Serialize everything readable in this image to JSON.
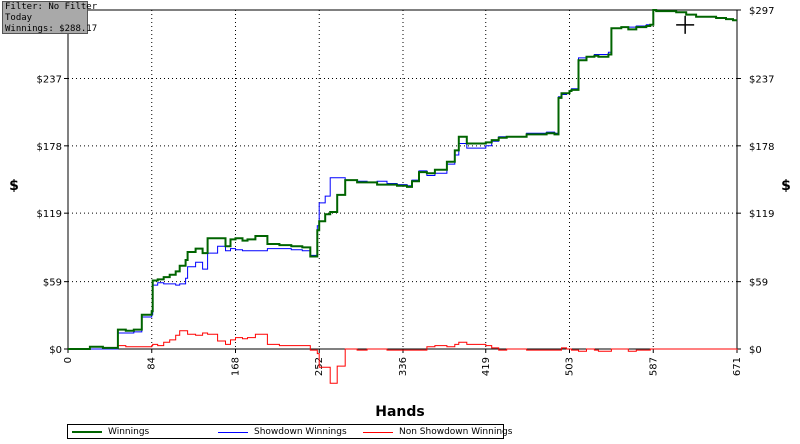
{
  "info_box": {
    "filter": "Filter: No Filter",
    "period": "Today",
    "winnings": "Winnings: $288.17"
  },
  "chart_data": {
    "type": "line",
    "title": "",
    "xlabel": "Hands",
    "ylabel_left": "$",
    "ylabel_right": "$",
    "xlim": [
      0,
      671
    ],
    "ylim": [
      -10,
      297
    ],
    "x_ticks": [
      0,
      84,
      168,
      252,
      336,
      419,
      503,
      587,
      671
    ],
    "y_ticks": [
      0,
      59,
      119,
      178,
      237,
      297
    ],
    "y_tick_labels": [
      "$0",
      "$59",
      "$119",
      "$178",
      "$237",
      "$297"
    ],
    "grid": true,
    "legend": "bottom",
    "series": [
      {
        "name": "Winnings",
        "color": "#006400",
        "x": [
          0,
          15,
          22,
          35,
          48,
          50,
          58,
          66,
          74,
          84,
          85,
          90,
          96,
          102,
          108,
          112,
          118,
          120,
          128,
          135,
          140,
          150,
          158,
          163,
          168,
          175,
          180,
          188,
          200,
          212,
          224,
          235,
          243,
          250,
          252,
          258,
          263,
          270,
          278,
          290,
          300,
          310,
          320,
          330,
          340,
          345,
          352,
          360,
          368,
          380,
          388,
          392,
          400,
          410,
          419,
          425,
          432,
          440,
          450,
          460,
          470,
          480,
          488,
          492,
          495,
          500,
          503,
          505,
          512,
          520,
          528,
          532,
          538,
          542,
          545,
          555,
          562,
          570,
          580,
          584,
          587,
          590,
          600,
          610,
          620,
          630,
          640,
          650,
          660,
          667,
          671
        ],
        "values": [
          0,
          0,
          2,
          1,
          1,
          17,
          16,
          17,
          30,
          33,
          60,
          61,
          63,
          65,
          68,
          73,
          78,
          85,
          88,
          84,
          97,
          97,
          90,
          96,
          97,
          95,
          96,
          99,
          92,
          91,
          90,
          89,
          81,
          104,
          112,
          118,
          120,
          135,
          148,
          146,
          146,
          144,
          144,
          143,
          142,
          147,
          155,
          154,
          157,
          164,
          174,
          186,
          180,
          180,
          181,
          183,
          185,
          186,
          186,
          188,
          188,
          189,
          188,
          220,
          224,
          224,
          226,
          227,
          253,
          256,
          257,
          256,
          256,
          258,
          281,
          282,
          280,
          282,
          283,
          284,
          297,
          296,
          296,
          295,
          293,
          291,
          291,
          290,
          289,
          288,
          288
        ]
      },
      {
        "name": "Showdown Winnings",
        "color": "#0000ff",
        "x": [
          0,
          15,
          22,
          35,
          48,
          50,
          58,
          66,
          74,
          84,
          85,
          90,
          96,
          102,
          108,
          112,
          118,
          120,
          128,
          135,
          140,
          150,
          158,
          163,
          168,
          175,
          180,
          188,
          200,
          212,
          224,
          235,
          243,
          250,
          252,
          258,
          263,
          270,
          278,
          290,
          300,
          310,
          320,
          330,
          340,
          345,
          352,
          360,
          368,
          380,
          388,
          392,
          400,
          410,
          419,
          425,
          432,
          440,
          450,
          460,
          470,
          480,
          488,
          492,
          495,
          500,
          503,
          505,
          512,
          520,
          528,
          532,
          538,
          542,
          545,
          555,
          562,
          570,
          580,
          584,
          587,
          590,
          600,
          610,
          620,
          630,
          640,
          650,
          660,
          667,
          671
        ],
        "values": [
          0,
          0,
          0,
          0,
          0,
          14,
          14,
          15,
          28,
          30,
          56,
          58,
          57,
          57,
          56,
          57,
          62,
          72,
          76,
          70,
          84,
          90,
          86,
          88,
          87,
          86,
          86,
          86,
          88,
          88,
          87,
          86,
          82,
          108,
          128,
          134,
          150,
          150,
          148,
          147,
          146,
          147,
          145,
          144,
          143,
          148,
          156,
          152,
          154,
          162,
          170,
          180,
          176,
          176,
          178,
          182,
          186,
          186,
          186,
          189,
          189,
          190,
          189,
          221,
          223,
          224,
          226,
          228,
          255,
          256,
          258,
          258,
          258,
          260,
          281,
          282,
          282,
          283,
          284,
          284,
          297,
          296,
          296,
          295,
          293,
          291,
          291,
          290,
          289,
          288,
          288
        ]
      },
      {
        "name": "Non Showdown Winnings",
        "color": "#ff0000",
        "x": [
          0,
          15,
          22,
          35,
          48,
          50,
          58,
          66,
          74,
          84,
          85,
          90,
          96,
          102,
          108,
          112,
          118,
          120,
          128,
          135,
          140,
          150,
          158,
          163,
          168,
          175,
          180,
          188,
          200,
          212,
          224,
          235,
          243,
          250,
          252,
          258,
          263,
          270,
          278,
          290,
          300,
          310,
          320,
          330,
          340,
          345,
          352,
          360,
          368,
          380,
          388,
          392,
          400,
          410,
          419,
          425,
          432,
          440,
          450,
          460,
          470,
          480,
          488,
          492,
          495,
          500,
          503,
          505,
          512,
          520,
          528,
          532,
          538,
          542,
          545,
          555,
          562,
          570,
          580,
          584,
          587,
          590,
          600,
          610,
          620,
          630,
          640,
          650,
          660,
          667,
          671
        ],
        "values": [
          0,
          0,
          2,
          1,
          1,
          3,
          2,
          2,
          2,
          3,
          4,
          3,
          6,
          8,
          12,
          16,
          16,
          13,
          12,
          14,
          13,
          7,
          4,
          8,
          10,
          9,
          10,
          13,
          4,
          3,
          3,
          3,
          -1,
          -4,
          -16,
          -16,
          -30,
          -15,
          0,
          -1,
          0,
          0,
          -1,
          -1,
          -1,
          -1,
          -1,
          2,
          3,
          2,
          4,
          6,
          4,
          4,
          3,
          1,
          -1,
          0,
          0,
          -1,
          -1,
          -1,
          -1,
          -1,
          1,
          0,
          0,
          -1,
          -2,
          0,
          -1,
          -2,
          -2,
          -2,
          0,
          0,
          -2,
          -1,
          -1,
          0,
          0,
          0,
          0,
          0,
          0,
          0,
          0,
          0,
          0,
          0,
          -1
        ]
      }
    ]
  },
  "cursor": {
    "x_hands": 619,
    "y_dollars": 284
  }
}
